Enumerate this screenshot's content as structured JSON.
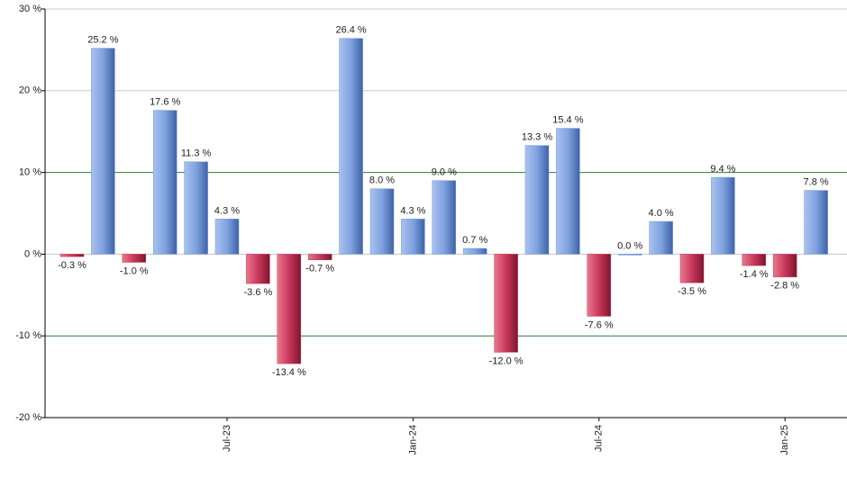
{
  "chart_data": {
    "type": "bar",
    "categories": [
      null,
      null,
      null,
      null,
      null,
      "Jul-23",
      null,
      null,
      null,
      null,
      null,
      "Jan-24",
      null,
      null,
      null,
      null,
      null,
      "Jul-24",
      null,
      null,
      null,
      null,
      null,
      "Jan-25",
      null
    ],
    "values": [
      -0.3,
      25.2,
      -1.0,
      17.6,
      11.3,
      4.3,
      -3.6,
      -13.4,
      -0.7,
      26.4,
      8.0,
      4.3,
      9.0,
      0.7,
      -12.0,
      13.3,
      15.4,
      -7.6,
      0.0,
      4.0,
      -3.5,
      9.4,
      -1.4,
      -2.8,
      7.8
    ],
    "value_labels": [
      "-0.3 %",
      "25.2 %",
      "-1.0 %",
      "17.6 %",
      "11.3 %",
      "4.3 %",
      "-3.6 %",
      "-13.4 %",
      "-0.7 %",
      "26.4 %",
      "8.0 %",
      "4.3 %",
      "9.0 %",
      "0.7 %",
      "-12.0 %",
      "13.3 %",
      "15.4 %",
      "-7.6 %",
      "0.0 %",
      "4.0 %",
      "-3.5 %",
      "9.4 %",
      "-1.4 %",
      "-2.8 %",
      "7.8 %"
    ],
    "positive_color": "#6f95d8",
    "negative_color": "#c8385a",
    "ylim": [
      -20,
      30
    ],
    "yticks": [
      {
        "value": -20,
        "label": "-20 %"
      },
      {
        "value": -10,
        "label": "-10 %"
      },
      {
        "value": 0,
        "label": "0 %"
      },
      {
        "value": 10,
        "label": "10 %"
      },
      {
        "value": 20,
        "label": "20 %"
      },
      {
        "value": 30,
        "label": "30 %"
      }
    ],
    "grid": true,
    "grid_color": "#c8c8c8",
    "reference_lines": {
      "values": [
        -10,
        10
      ],
      "color": "#2e7d32"
    }
  }
}
